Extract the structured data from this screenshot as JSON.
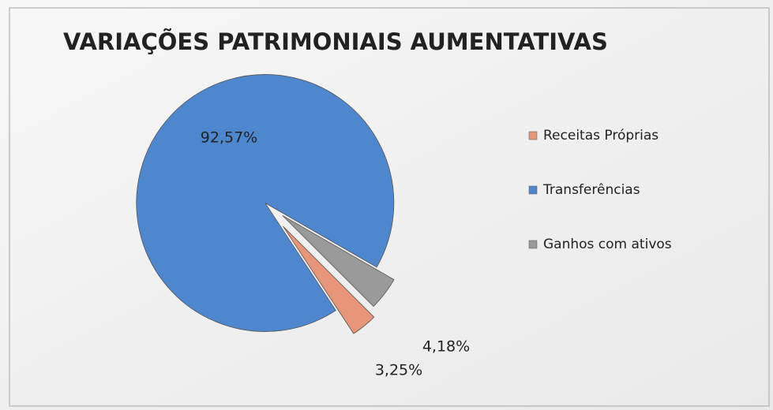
{
  "chart_data": {
    "type": "pie",
    "title": "VARIAÇÕES PATRIMONIAIS AUMENTATIVAS",
    "categories": [
      "Receitas Próprias",
      "Transferências",
      "Ganhos com ativos"
    ],
    "values": [
      3.25,
      92.57,
      4.18
    ],
    "value_labels": [
      "3,25%",
      "92,57%",
      "4,18%"
    ],
    "colors": [
      "#e8967a",
      "#4f87cf",
      "#9a9a9a"
    ],
    "legend": "right"
  }
}
